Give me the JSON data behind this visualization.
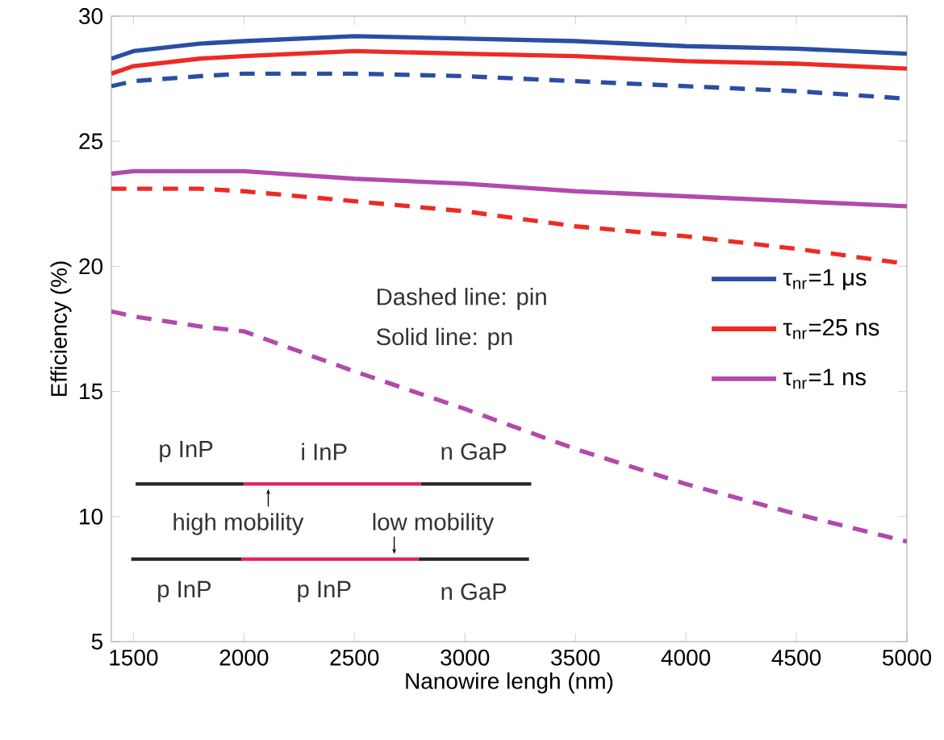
{
  "chart_data": {
    "type": "line",
    "xlabel": "Nanowire lengh (nm)",
    "ylabel": "Efficiency (%)",
    "x": [
      1400,
      1500,
      1800,
      2000,
      2500,
      3000,
      3500,
      4000,
      4500,
      5000
    ],
    "series": [
      {
        "name": "τ$_{nr}$=1 μs",
        "color": "#2b4ea2",
        "line_style": "solid",
        "values": [
          28.3,
          28.6,
          28.9,
          29.0,
          29.2,
          29.1,
          29.0,
          28.8,
          28.7,
          28.5
        ]
      },
      {
        "name": "τ$_{nr}$=25 ns",
        "color": "#ee2a24",
        "line_style": "solid",
        "values": [
          27.7,
          28.0,
          28.3,
          28.4,
          28.6,
          28.5,
          28.4,
          28.2,
          28.1,
          27.9
        ]
      },
      {
        "name": "τ$_{nr}$=1 ns",
        "color": "#b24aab",
        "line_style": "solid",
        "values": [
          23.7,
          23.8,
          23.8,
          23.8,
          23.5,
          23.3,
          23.0,
          22.8,
          22.6,
          22.4
        ]
      },
      {
        "color": "#2b4ea2",
        "line_style": "dashed",
        "values": [
          27.2,
          27.4,
          27.6,
          27.7,
          27.7,
          27.6,
          27.4,
          27.2,
          27.0,
          26.7
        ]
      },
      {
        "color": "#ee2a24",
        "line_style": "dashed",
        "values": [
          23.1,
          23.1,
          23.1,
          23.0,
          22.6,
          22.2,
          21.6,
          21.2,
          20.7,
          20.1
        ]
      },
      {
        "color": "#b24aab",
        "line_style": "dashed",
        "values": [
          18.2,
          18.0,
          17.6,
          17.4,
          15.8,
          14.3,
          12.7,
          11.3,
          10.1,
          9.0
        ]
      }
    ],
    "xlim": [
      1400,
      5000
    ],
    "xticks": [
      1500,
      2000,
      2500,
      3000,
      3500,
      4000,
      4500,
      5000
    ],
    "ylim": [
      5,
      30
    ],
    "yticks": [
      5,
      10,
      15,
      20,
      25,
      30
    ],
    "legend": "right",
    "marker": "none",
    "annotations": [
      "Dashed line: pin",
      "Solid line: pn",
      "p InP",
      "i InP",
      "n GaP",
      "high mobility",
      "low mobility",
      "p InP",
      "p InP",
      "n GaP"
    ]
  }
}
